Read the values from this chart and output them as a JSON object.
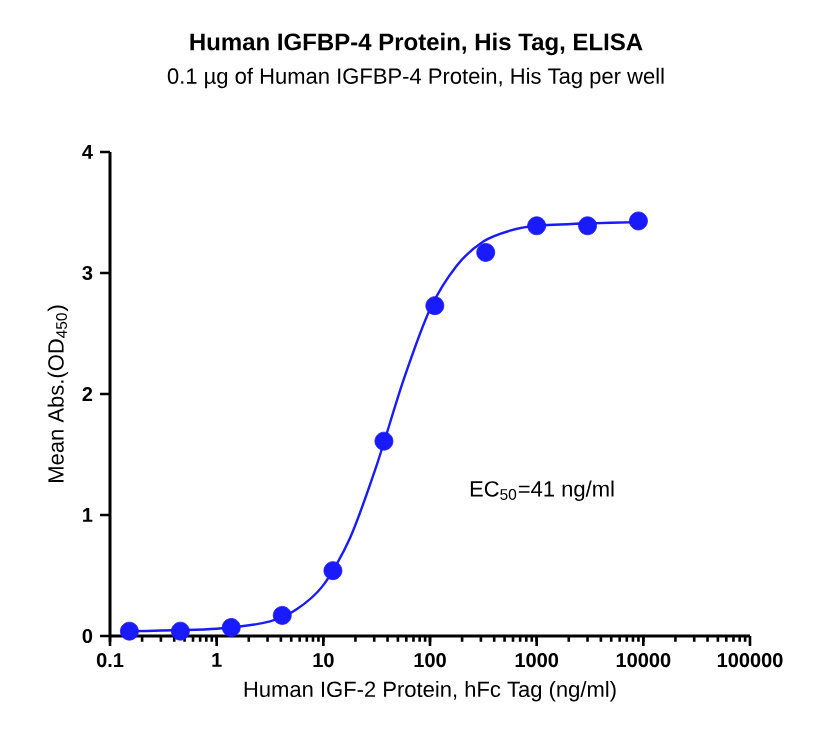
{
  "chart_data": {
    "type": "scatter",
    "title": "Human IGFBP-4 Protein, His Tag, ELISA",
    "subtitle": "0.1 µg of Human IGFBP-4 Protein, His Tag per well",
    "xlabel": "Human IGF-2 Protein, hFc Tag (ng/ml)",
    "ylabel": "Mean Abs.(OD$_{450}$)",
    "annotations": [
      "EC$_{50}$=41 ng/ml"
    ],
    "log": "x",
    "xlim": [
      0.1,
      100000
    ],
    "xticks": [
      0.1,
      1,
      10,
      100,
      1000,
      10000,
      100000
    ],
    "ylim": [
      0,
      4
    ],
    "yticks": [
      0,
      1,
      2,
      3,
      4
    ],
    "series": [
      {
        "color": "#1a1aff",
        "marker": "circle",
        "x": [
          0.152,
          0.457,
          1.37,
          4.12,
          12.3,
          37,
          111,
          333,
          1000,
          3000,
          9000
        ],
        "values": [
          0.04,
          0.04,
          0.07,
          0.17,
          0.54,
          1.61,
          2.73,
          3.17,
          3.39,
          3.39,
          3.43
        ]
      },
      {
        "type": "line",
        "color": "#1a1aff",
        "marker": "none",
        "line_style": "solid",
        "x": [
          0.158,
          1,
          3.16,
          5.62,
          10,
          17.8,
          31.6,
          56.2,
          100,
          178,
          316,
          562,
          1000,
          3160,
          8900
        ],
        "values": [
          0.04,
          0.06,
          0.12,
          0.22,
          0.42,
          0.81,
          1.41,
          2.11,
          2.7,
          3.06,
          3.26,
          3.35,
          3.39,
          3.41,
          3.42
        ]
      }
    ]
  }
}
